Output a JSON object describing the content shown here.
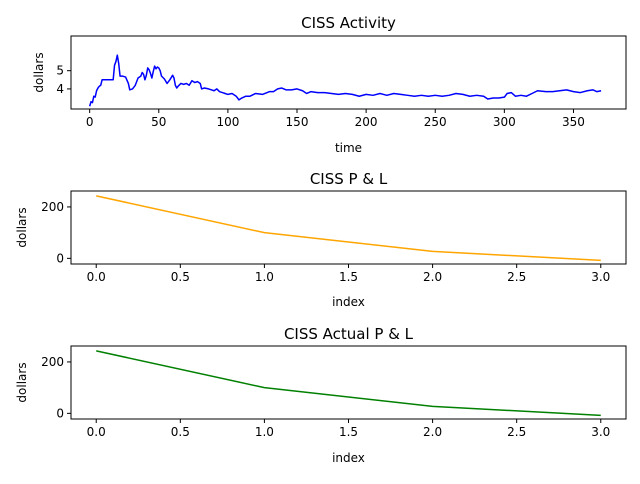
{
  "chart_data": [
    {
      "type": "line",
      "title": "CISS Activity",
      "xlabel": "time",
      "ylabel": "dollars",
      "xlim": [
        -13.5,
        388
      ],
      "ylim": [
        2.9,
        6.9
      ],
      "xticks": [
        0,
        50,
        100,
        150,
        200,
        250,
        300,
        350
      ],
      "yticks": [
        4,
        5
      ],
      "grid": false,
      "series": [
        {
          "color": "#0000ff",
          "points": [
            [
              0,
              3.05
            ],
            [
              1,
              3.3
            ],
            [
              2,
              3.25
            ],
            [
              3,
              3.6
            ],
            [
              4,
              3.55
            ],
            [
              5,
              3.9
            ],
            [
              6,
              4.05
            ],
            [
              7,
              4.15
            ],
            [
              8,
              4.2
            ],
            [
              9,
              4.5
            ],
            [
              12,
              4.5
            ],
            [
              15,
              4.5
            ],
            [
              17,
              4.5
            ],
            [
              18,
              5.3
            ],
            [
              19,
              5.5
            ],
            [
              20,
              5.85
            ],
            [
              21,
              5.4
            ],
            [
              22,
              4.7
            ],
            [
              24,
              4.7
            ],
            [
              26,
              4.65
            ],
            [
              28,
              4.3
            ],
            [
              29,
              3.95
            ],
            [
              31,
              4.0
            ],
            [
              33,
              4.2
            ],
            [
              35,
              4.6
            ],
            [
              37,
              4.7
            ],
            [
              38,
              4.9
            ],
            [
              39,
              4.8
            ],
            [
              40,
              4.5
            ],
            [
              41,
              4.75
            ],
            [
              42,
              5.15
            ],
            [
              43,
              5.05
            ],
            [
              44,
              4.85
            ],
            [
              45,
              4.6
            ],
            [
              46,
              4.95
            ],
            [
              47,
              5.25
            ],
            [
              48,
              5.1
            ],
            [
              49,
              5.2
            ],
            [
              50,
              5.15
            ],
            [
              51,
              5.0
            ],
            [
              52,
              4.7
            ],
            [
              54,
              4.55
            ],
            [
              56,
              4.3
            ],
            [
              58,
              4.5
            ],
            [
              60,
              4.75
            ],
            [
              61,
              4.6
            ],
            [
              62,
              4.2
            ],
            [
              63,
              4.05
            ],
            [
              64,
              4.15
            ],
            [
              66,
              4.3
            ],
            [
              68,
              4.25
            ],
            [
              70,
              4.3
            ],
            [
              72,
              4.2
            ],
            [
              74,
              4.45
            ],
            [
              76,
              4.35
            ],
            [
              78,
              4.4
            ],
            [
              80,
              4.3
            ],
            [
              81,
              4.0
            ],
            [
              83,
              4.05
            ],
            [
              86,
              4.0
            ],
            [
              88,
              3.95
            ],
            [
              90,
              3.9
            ],
            [
              92,
              4.0
            ],
            [
              94,
              3.85
            ],
            [
              96,
              3.8
            ],
            [
              98,
              3.75
            ],
            [
              100,
              3.7
            ],
            [
              103,
              3.75
            ],
            [
              106,
              3.6
            ],
            [
              108,
              3.4
            ],
            [
              110,
              3.5
            ],
            [
              113,
              3.6
            ],
            [
              116,
              3.6
            ],
            [
              120,
              3.75
            ],
            [
              125,
              3.7
            ],
            [
              130,
              3.85
            ],
            [
              133,
              3.85
            ],
            [
              136,
              4.0
            ],
            [
              139,
              4.05
            ],
            [
              142,
              3.95
            ],
            [
              146,
              3.95
            ],
            [
              150,
              4.0
            ],
            [
              154,
              3.9
            ],
            [
              157,
              3.75
            ],
            [
              160,
              3.85
            ],
            [
              165,
              3.8
            ],
            [
              170,
              3.8
            ],
            [
              175,
              3.75
            ],
            [
              180,
              3.7
            ],
            [
              185,
              3.75
            ],
            [
              190,
              3.7
            ],
            [
              195,
              3.6
            ],
            [
              200,
              3.7
            ],
            [
              205,
              3.65
            ],
            [
              210,
              3.75
            ],
            [
              215,
              3.65
            ],
            [
              220,
              3.75
            ],
            [
              225,
              3.7
            ],
            [
              230,
              3.65
            ],
            [
              235,
              3.6
            ],
            [
              240,
              3.65
            ],
            [
              245,
              3.6
            ],
            [
              250,
              3.65
            ],
            [
              255,
              3.6
            ],
            [
              260,
              3.65
            ],
            [
              265,
              3.75
            ],
            [
              270,
              3.7
            ],
            [
              275,
              3.6
            ],
            [
              280,
              3.65
            ],
            [
              285,
              3.6
            ],
            [
              288,
              3.45
            ],
            [
              292,
              3.5
            ],
            [
              296,
              3.5
            ],
            [
              300,
              3.55
            ],
            [
              302,
              3.75
            ],
            [
              305,
              3.8
            ],
            [
              308,
              3.6
            ],
            [
              312,
              3.65
            ],
            [
              316,
              3.6
            ],
            [
              320,
              3.75
            ],
            [
              324,
              3.9
            ],
            [
              330,
              3.85
            ],
            [
              335,
              3.85
            ],
            [
              340,
              3.9
            ],
            [
              345,
              3.95
            ],
            [
              350,
              3.85
            ],
            [
              355,
              3.8
            ],
            [
              360,
              3.9
            ],
            [
              364,
              3.95
            ],
            [
              367,
              3.85
            ],
            [
              370,
              3.9
            ]
          ]
        }
      ]
    },
    {
      "type": "line",
      "title": "CISS P & L",
      "xlabel": "index",
      "ylabel": "dollars",
      "xlim": [
        -0.15,
        3.15
      ],
      "ylim": [
        -22,
        262
      ],
      "xticks": [
        0.0,
        0.5,
        1.0,
        1.5,
        2.0,
        2.5,
        3.0
      ],
      "yticks": [
        0,
        200
      ],
      "grid": false,
      "series": [
        {
          "color": "#ffa500",
          "x": [
            0,
            1,
            2,
            3
          ],
          "y": [
            243,
            100,
            27,
            -8
          ]
        }
      ]
    },
    {
      "type": "line",
      "title": "CISS Actual P & L",
      "xlabel": "index",
      "ylabel": "dollars",
      "xlim": [
        -0.15,
        3.15
      ],
      "ylim": [
        -22,
        262
      ],
      "xticks": [
        0.0,
        0.5,
        1.0,
        1.5,
        2.0,
        2.5,
        3.0
      ],
      "yticks": [
        0,
        200
      ],
      "grid": false,
      "series": [
        {
          "color": "#008000",
          "x": [
            0,
            1,
            2,
            3
          ],
          "y": [
            243,
            100,
            27,
            -8
          ]
        }
      ]
    }
  ]
}
